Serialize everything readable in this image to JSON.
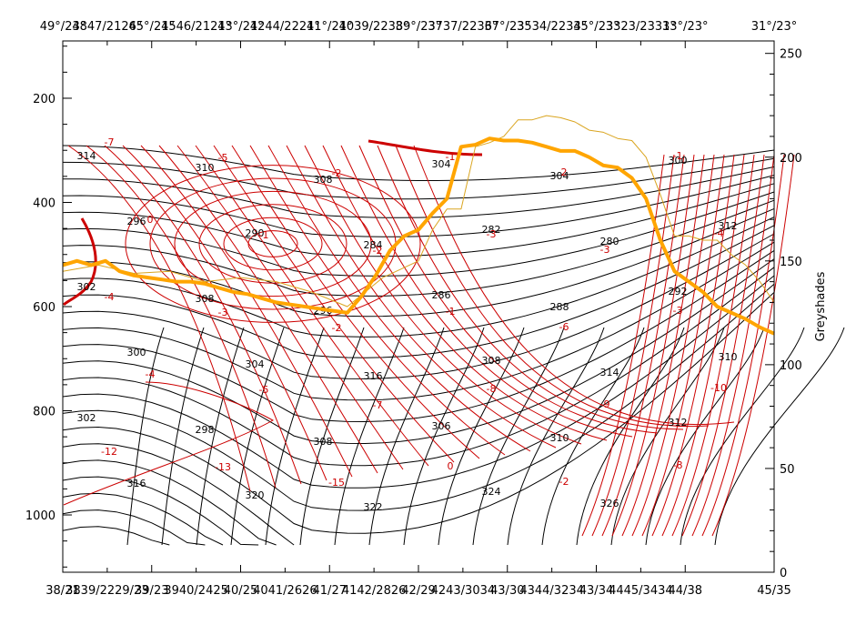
{
  "chart_data": {
    "type": "line",
    "title": "",
    "top_axis_labels": [
      "49°/23°",
      "45°/21°",
      "43°/21°",
      "41°/21°",
      "39°/23°",
      "37°/23°",
      "35°/23°",
      "33°/23°",
      "31°/23°"
    ],
    "top_axis_overlap_text": [
      "4847/2126°",
      "4546/2121°",
      "4244/2221°",
      "4039/2238°",
      "3737/2236°",
      "3534/2234°",
      "3323/2331°"
    ],
    "bottom_axis_labels": [
      "38/21",
      "39/23",
      "40/25",
      "41/27",
      "42/29",
      "43/30",
      "43/34",
      "44/38",
      "45/35"
    ],
    "bottom_axis_overlap_text": [
      "3839/2229/23",
      "3940/2425",
      "4041/2626",
      "4142/2826",
      "4243/3034",
      "4344/3234",
      "4445/3434"
    ],
    "left_axis": {
      "ticks": [
        200,
        400,
        600,
        800,
        1000
      ],
      "range": [
        1110,
        90
      ],
      "reversed": true
    },
    "right_axis": {
      "label": "Greyshades",
      "ticks": [
        0,
        50,
        100,
        150,
        200,
        250
      ],
      "range": [
        0,
        256
      ]
    },
    "theta_contours": {
      "color": "#000000",
      "labels": [
        "314",
        "310",
        "308",
        "304",
        "304",
        "300",
        "296",
        "290",
        "284",
        "282",
        "280",
        "312",
        "302",
        "308",
        "296",
        "286",
        "288",
        "292",
        "300",
        "304",
        "316",
        "308",
        "314",
        "310",
        "302",
        "298",
        "308",
        "306",
        "310",
        "312",
        "316",
        "320",
        "322",
        "324",
        "326"
      ]
    },
    "red_contours": {
      "color": "#cc0000",
      "labels": [
        "-7",
        "-5",
        "-2",
        "-1",
        "2",
        "-1",
        "0",
        "-1",
        "-2",
        "-3",
        "-3",
        "-4",
        "-4",
        "-3",
        "-2",
        "-1",
        "-6",
        "-3",
        "-4",
        "-5",
        "-7",
        "-8",
        "-9",
        "-10",
        "-12",
        "-13",
        "-15",
        "0",
        "-2",
        "-8"
      ]
    },
    "series": [
      {
        "name": "",
        "color": "#ffa500",
        "width": 4,
        "x": [
          0,
          2,
          4,
          6,
          8,
          10,
          12,
          14,
          16,
          18,
          20,
          22,
          24,
          26,
          28,
          30,
          32,
          34,
          36,
          38,
          40,
          42,
          44,
          46,
          48,
          50,
          52,
          54,
          56,
          58,
          60,
          62,
          64,
          66,
          68,
          70,
          72,
          74,
          76,
          78,
          80,
          82,
          84,
          86,
          88,
          90,
          92,
          94,
          96,
          98,
          100
        ],
        "y": [
          148,
          150,
          148,
          150,
          145,
          143,
          142,
          141,
          140,
          140,
          139,
          137,
          135,
          134,
          132,
          130,
          129,
          128,
          127,
          126,
          125,
          133,
          143,
          155,
          162,
          165,
          173,
          180,
          205,
          206,
          209,
          208,
          208,
          207,
          205,
          203,
          203,
          200,
          196,
          195,
          190,
          180,
          160,
          145,
          140,
          135,
          128,
          125,
          122,
          118,
          115
        ]
      },
      {
        "name": "",
        "color": "#daa520",
        "width": 1,
        "x": [
          0,
          5,
          10,
          15,
          20,
          25,
          30,
          35,
          40,
          45,
          50,
          52,
          54,
          56,
          58,
          60,
          62,
          64,
          66,
          68,
          70,
          72,
          74,
          76,
          78,
          80,
          82,
          84,
          86,
          88,
          90,
          92,
          94,
          96,
          98,
          100
        ],
        "y": [
          145,
          148,
          144,
          145,
          140,
          142,
          140,
          135,
          128,
          142,
          150,
          165,
          175,
          175,
          205,
          207,
          210,
          218,
          218,
          220,
          219,
          217,
          213,
          212,
          209,
          208,
          200,
          182,
          162,
          162,
          160,
          160,
          153,
          148,
          140,
          130
        ]
      }
    ]
  }
}
